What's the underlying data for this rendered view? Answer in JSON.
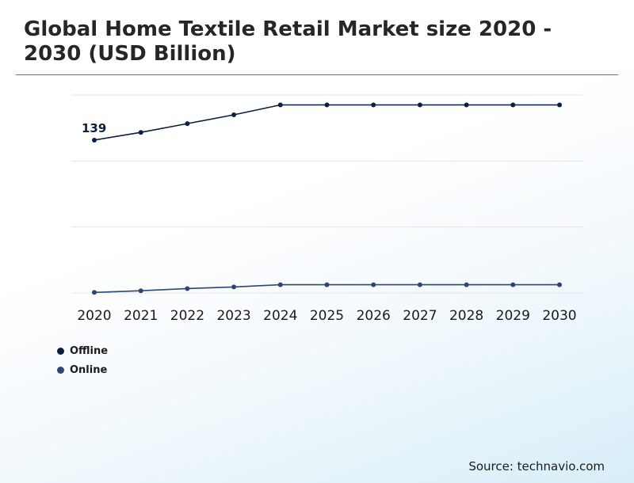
{
  "chart_data": {
    "type": "line",
    "title": "Global Home Textile Retail Market size 2020 - 2030 (USD Billion)",
    "categories": [
      "2020",
      "2021",
      "2022",
      "2023",
      "2024",
      "2025",
      "2026",
      "2027",
      "2028",
      "2029",
      "2030"
    ],
    "series": [
      {
        "name": "Offline",
        "color": "#0d1f40",
        "values": [
          139,
          146,
          154,
          162,
          171,
          171,
          171,
          171,
          171,
          171,
          171
        ]
      },
      {
        "name": "Online",
        "color": "#2f4573",
        "values": [
          0.5,
          2,
          4,
          5.5,
          7.5,
          7.5,
          7.5,
          7.5,
          7.5,
          7.5,
          7.5
        ]
      }
    ],
    "annotations": [
      {
        "series": 0,
        "index": 0,
        "text": "139"
      }
    ],
    "ylim": [
      0,
      180
    ],
    "grid": true,
    "legend_position": "bottom-left",
    "source": "Source: technavio.com"
  }
}
